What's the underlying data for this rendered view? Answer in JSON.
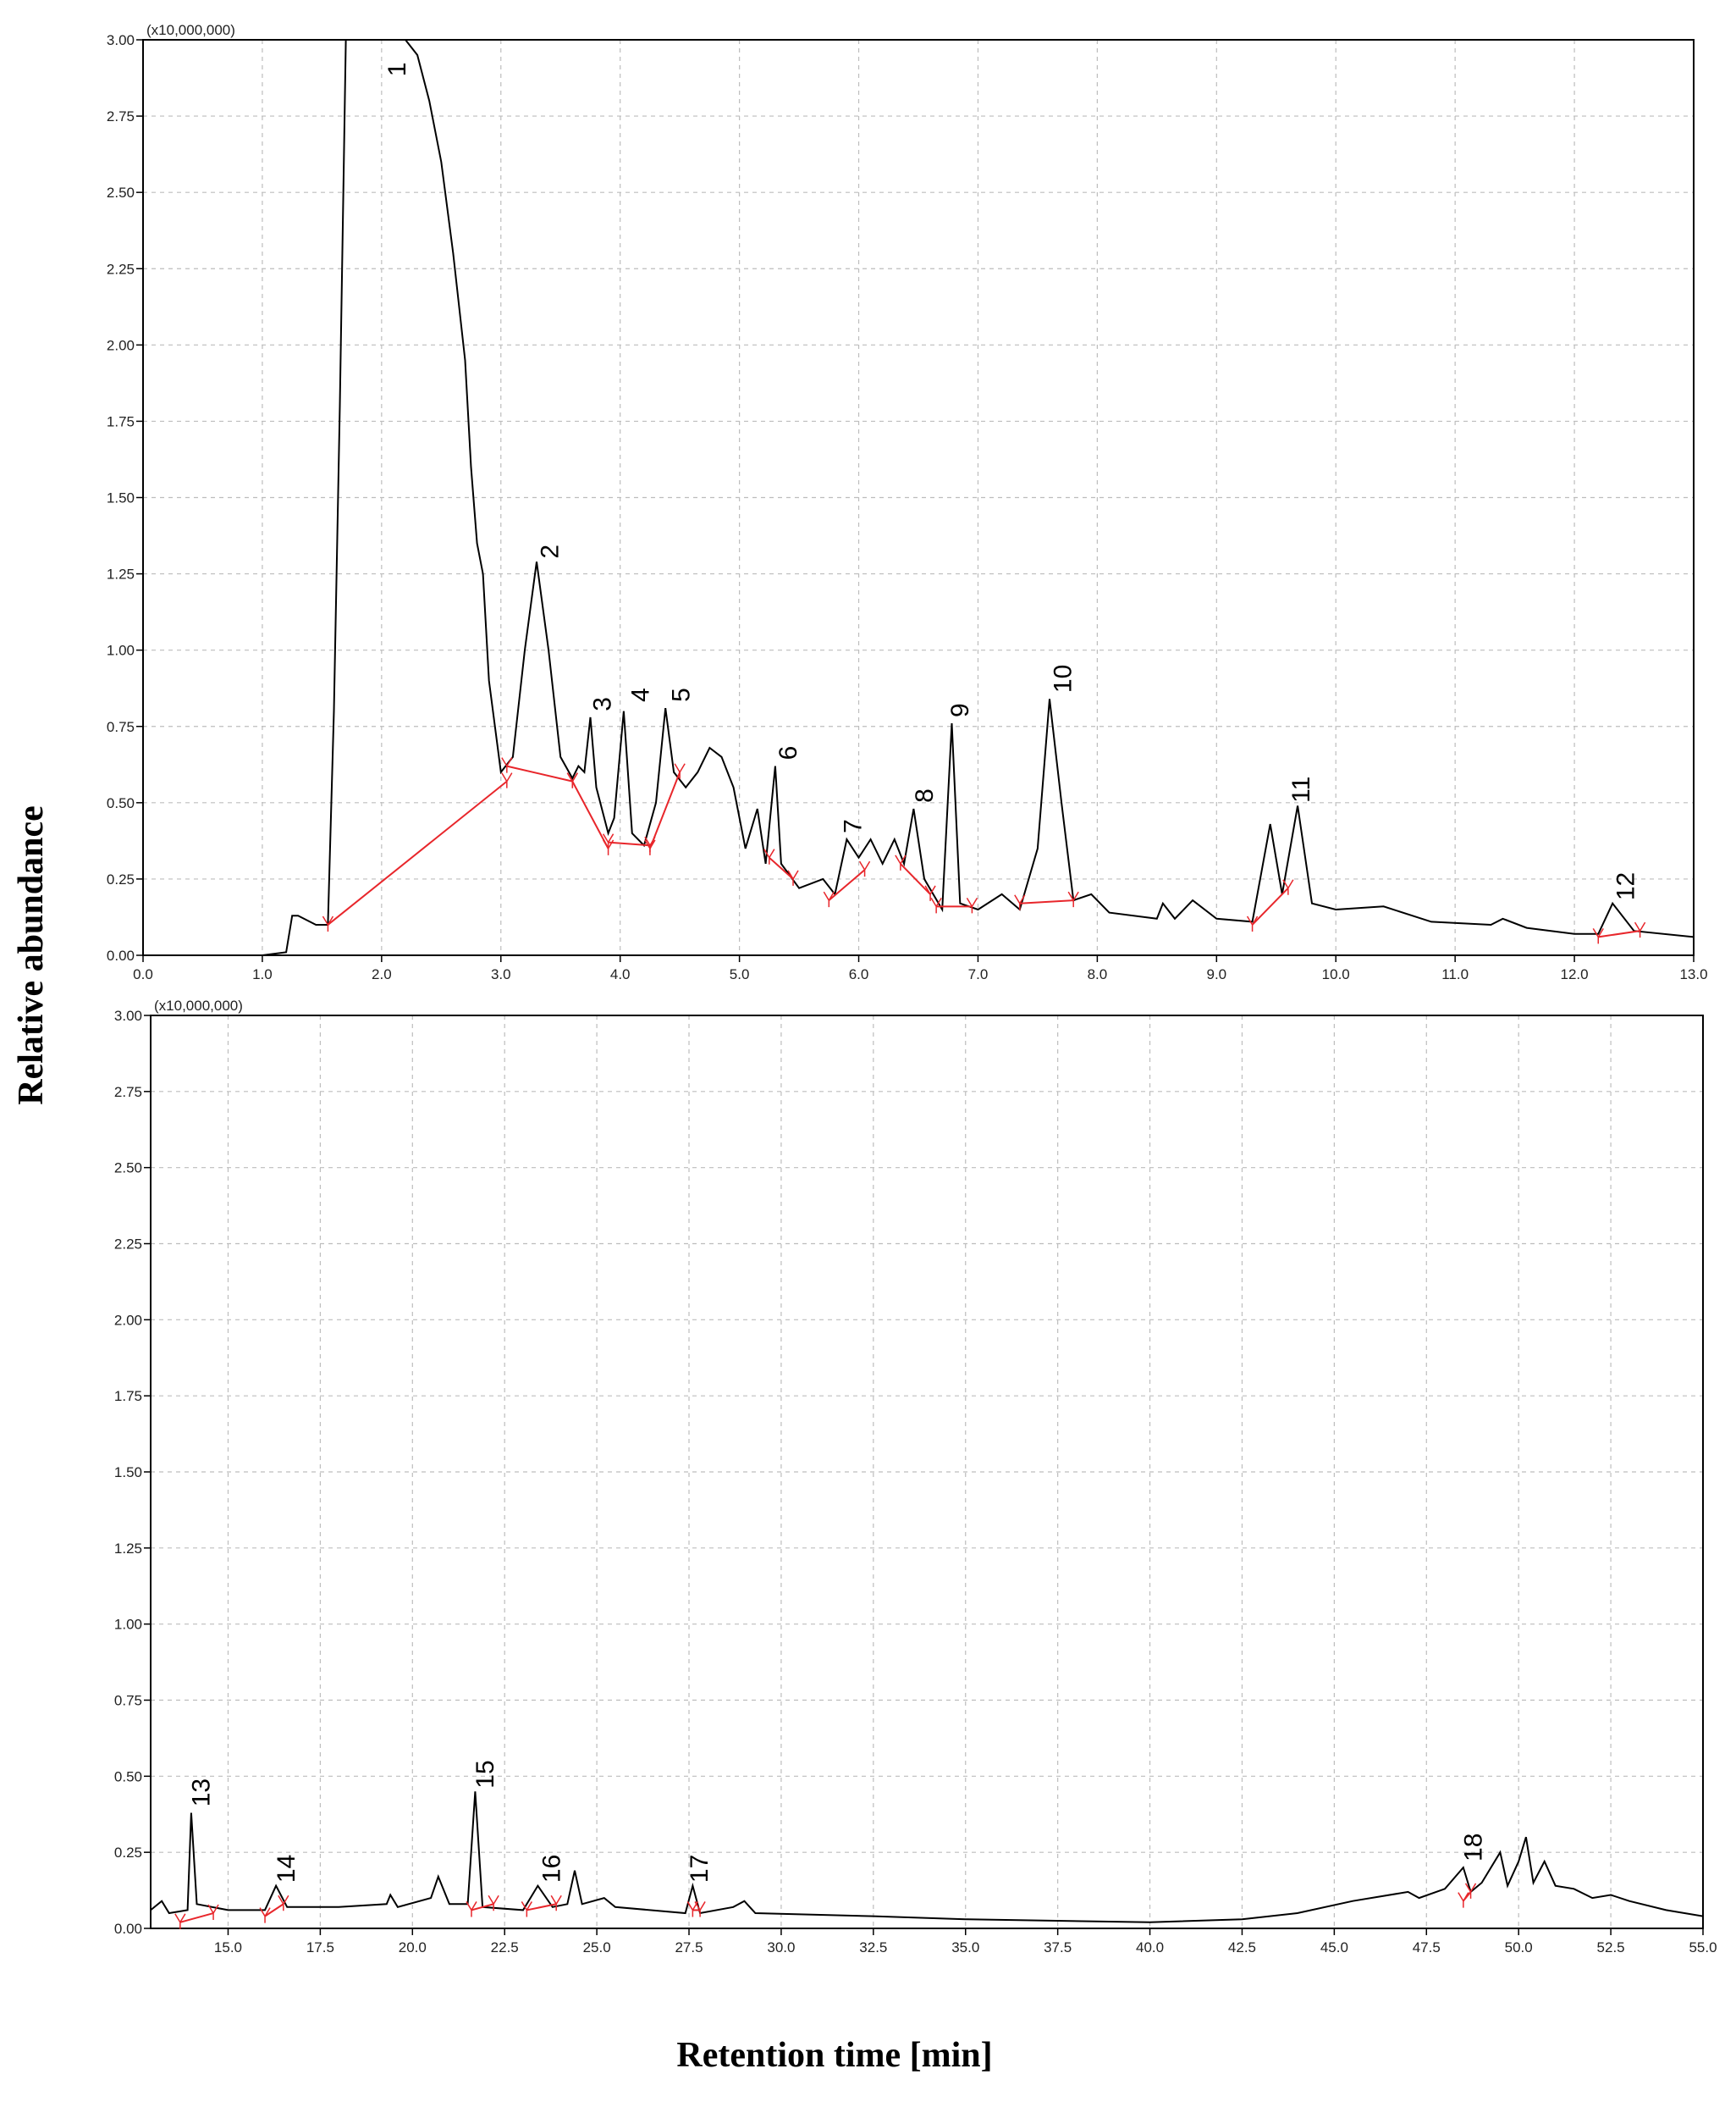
{
  "ylabel": "Relative abundance",
  "xlabel": "Retention time [min]",
  "chart_data": [
    {
      "type": "line",
      "multiplier": "(x10,000,000)",
      "color": "#000000",
      "baseline_color": "#e8262b",
      "grid": true,
      "xlim": [
        0,
        13
      ],
      "ylim": [
        0,
        3
      ],
      "xticks": [
        {
          "value": 0,
          "label": "0.0"
        },
        {
          "value": 1,
          "label": "1.0"
        },
        {
          "value": 2,
          "label": "2.0"
        },
        {
          "value": 3,
          "label": "3.0"
        },
        {
          "value": 4,
          "label": "4.0"
        },
        {
          "value": 5,
          "label": "5.0"
        },
        {
          "value": 6,
          "label": "6.0"
        },
        {
          "value": 7,
          "label": "7.0"
        },
        {
          "value": 8,
          "label": "8.0"
        },
        {
          "value": 9,
          "label": "9.0"
        },
        {
          "value": 10,
          "label": "10.0"
        },
        {
          "value": 11,
          "label": "11.0"
        },
        {
          "value": 12,
          "label": "12.0"
        },
        {
          "value": 13,
          "label": "13.0"
        }
      ],
      "yticks": [
        {
          "value": 0,
          "label": "0.00"
        },
        {
          "value": 0.25,
          "label": "0.25"
        },
        {
          "value": 0.5,
          "label": "0.50"
        },
        {
          "value": 0.75,
          "label": "0.75"
        },
        {
          "value": 1,
          "label": "1.00"
        },
        {
          "value": 1.25,
          "label": "1.25"
        },
        {
          "value": 1.5,
          "label": "1.50"
        },
        {
          "value": 1.75,
          "label": "1.75"
        },
        {
          "value": 2,
          "label": "2.00"
        },
        {
          "value": 2.25,
          "label": "2.25"
        },
        {
          "value": 2.5,
          "label": "2.50"
        },
        {
          "value": 2.75,
          "label": "2.75"
        },
        {
          "value": 3,
          "label": "3.00"
        }
      ],
      "x": [
        0,
        0.5,
        1.0,
        1.2,
        1.25,
        1.3,
        1.45,
        1.55,
        1.6,
        1.65,
        1.7,
        2.2,
        2.3,
        2.4,
        2.5,
        2.6,
        2.7,
        2.75,
        2.8,
        2.85,
        2.9,
        3.0,
        3.1,
        3.2,
        3.3,
        3.4,
        3.5,
        3.6,
        3.65,
        3.7,
        3.75,
        3.8,
        3.9,
        3.95,
        4.03,
        4.1,
        4.2,
        4.3,
        4.38,
        4.45,
        4.55,
        4.65,
        4.75,
        4.85,
        4.95,
        5.05,
        5.15,
        5.22,
        5.3,
        5.35,
        5.5,
        5.7,
        5.8,
        5.9,
        6.0,
        6.1,
        6.2,
        6.3,
        6.38,
        6.46,
        6.55,
        6.7,
        6.78,
        6.85,
        7.0,
        7.2,
        7.35,
        7.5,
        7.6,
        7.7,
        7.8,
        7.95,
        8.1,
        8.5,
        8.55,
        8.65,
        8.8,
        9.0,
        9.3,
        9.45,
        9.55,
        9.68,
        9.8,
        10.0,
        10.4,
        10.8,
        11.3,
        11.4,
        11.6,
        12.0,
        12.2,
        12.32,
        12.5,
        13.0
      ],
      "values": [
        0,
        0,
        0,
        0.01,
        0.13,
        0.13,
        0.1,
        0.1,
        0.8,
        1.8,
        3.0,
        3.0,
        2.95,
        2.8,
        2.6,
        2.3,
        1.95,
        1.6,
        1.35,
        1.25,
        0.9,
        0.6,
        0.65,
        1.0,
        1.29,
        1.0,
        0.65,
        0.58,
        0.62,
        0.6,
        0.78,
        0.55,
        0.4,
        0.45,
        0.8,
        0.4,
        0.36,
        0.5,
        0.81,
        0.6,
        0.55,
        0.6,
        0.68,
        0.65,
        0.55,
        0.35,
        0.48,
        0.3,
        0.62,
        0.3,
        0.22,
        0.25,
        0.2,
        0.38,
        0.32,
        0.38,
        0.3,
        0.38,
        0.3,
        0.48,
        0.25,
        0.15,
        0.76,
        0.17,
        0.15,
        0.2,
        0.15,
        0.35,
        0.84,
        0.5,
        0.18,
        0.2,
        0.14,
        0.12,
        0.17,
        0.12,
        0.18,
        0.12,
        0.11,
        0.43,
        0.2,
        0.49,
        0.17,
        0.15,
        0.16,
        0.11,
        0.1,
        0.12,
        0.09,
        0.07,
        0.07,
        0.17,
        0.08,
        0.06
      ],
      "baselines": [
        [
          1.55,
          0.1,
          3.05,
          0.57
        ],
        [
          3.05,
          0.62,
          3.6,
          0.57
        ],
        [
          3.6,
          0.57,
          3.9,
          0.35
        ],
        [
          3.9,
          0.37,
          4.25,
          0.36
        ],
        [
          4.25,
          0.35,
          4.5,
          0.6
        ],
        [
          5.25,
          0.32,
          5.45,
          0.25
        ],
        [
          5.75,
          0.18,
          6.05,
          0.28
        ],
        [
          6.35,
          0.3,
          6.6,
          0.2
        ],
        [
          6.65,
          0.16,
          6.95,
          0.16
        ],
        [
          7.35,
          0.17,
          7.8,
          0.18
        ],
        [
          9.3,
          0.1,
          9.6,
          0.22
        ],
        [
          12.2,
          0.06,
          12.55,
          0.08
        ]
      ],
      "annotations": [
        {
          "text": "1",
          "x": 2.2,
          "y": 2.88
        },
        {
          "text": "2",
          "x": 3.48,
          "y": 1.3
        },
        {
          "text": "3",
          "x": 3.92,
          "y": 0.8
        },
        {
          "text": "4",
          "x": 4.24,
          "y": 0.83
        },
        {
          "text": "5",
          "x": 4.58,
          "y": 0.83
        },
        {
          "text": "6",
          "x": 5.48,
          "y": 0.64
        },
        {
          "text": "7",
          "x": 6.02,
          "y": 0.4
        },
        {
          "text": "8",
          "x": 6.62,
          "y": 0.5
        },
        {
          "text": "9",
          "x": 6.92,
          "y": 0.78
        },
        {
          "text": "10",
          "x": 7.78,
          "y": 0.86
        },
        {
          "text": "11",
          "x": 9.78,
          "y": 0.5
        },
        {
          "text": "12",
          "x": 12.5,
          "y": 0.18
        }
      ]
    },
    {
      "type": "line",
      "multiplier": "(x10,000,000)",
      "color": "#000000",
      "baseline_color": "#e8262b",
      "grid": true,
      "xlim": [
        12.9,
        55
      ],
      "ylim": [
        0,
        3
      ],
      "xticks": [
        {
          "value": 15,
          "label": "15.0"
        },
        {
          "value": 17.5,
          "label": "17.5"
        },
        {
          "value": 20,
          "label": "20.0"
        },
        {
          "value": 22.5,
          "label": "22.5"
        },
        {
          "value": 25,
          "label": "25.0"
        },
        {
          "value": 27.5,
          "label": "27.5"
        },
        {
          "value": 30,
          "label": "30.0"
        },
        {
          "value": 32.5,
          "label": "32.5"
        },
        {
          "value": 35,
          "label": "35.0"
        },
        {
          "value": 37.5,
          "label": "37.5"
        },
        {
          "value": 40,
          "label": "40.0"
        },
        {
          "value": 42.5,
          "label": "42.5"
        },
        {
          "value": 45,
          "label": "45.0"
        },
        {
          "value": 47.5,
          "label": "47.5"
        },
        {
          "value": 50,
          "label": "50.0"
        },
        {
          "value": 52.5,
          "label": "52.5"
        },
        {
          "value": 55,
          "label": "55.0"
        }
      ],
      "yticks": [
        {
          "value": 0,
          "label": "0.00"
        },
        {
          "value": 0.25,
          "label": "0.25"
        },
        {
          "value": 0.5,
          "label": "0.50"
        },
        {
          "value": 0.75,
          "label": "0.75"
        },
        {
          "value": 1,
          "label": "1.00"
        },
        {
          "value": 1.25,
          "label": "1.25"
        },
        {
          "value": 1.5,
          "label": "1.50"
        },
        {
          "value": 1.75,
          "label": "1.75"
        },
        {
          "value": 2,
          "label": "2.00"
        },
        {
          "value": 2.25,
          "label": "2.25"
        },
        {
          "value": 2.5,
          "label": "2.50"
        },
        {
          "value": 2.75,
          "label": "2.75"
        },
        {
          "value": 3,
          "label": "3.00"
        }
      ],
      "x": [
        12.9,
        13.2,
        13.4,
        13.9,
        14.0,
        14.15,
        15.0,
        16.0,
        16.3,
        16.6,
        18.0,
        19.3,
        19.4,
        19.6,
        20.5,
        20.7,
        21.0,
        21.5,
        21.7,
        21.9,
        23.0,
        23.4,
        23.8,
        24.2,
        24.4,
        24.6,
        25.2,
        25.5,
        27.4,
        27.6,
        27.8,
        28.7,
        29.0,
        29.3,
        32.5,
        35.0,
        40.0,
        42.5,
        44.0,
        45.5,
        47.0,
        47.3,
        48.0,
        48.5,
        48.7,
        49.0,
        49.5,
        49.7,
        50.0,
        50.2,
        50.4,
        50.7,
        51.0,
        51.5,
        52.0,
        52.5,
        53.0,
        54.0,
        55.0
      ],
      "values": [
        0.06,
        0.09,
        0.05,
        0.06,
        0.38,
        0.08,
        0.06,
        0.06,
        0.14,
        0.07,
        0.07,
        0.08,
        0.11,
        0.07,
        0.1,
        0.17,
        0.08,
        0.08,
        0.45,
        0.07,
        0.06,
        0.14,
        0.07,
        0.08,
        0.19,
        0.08,
        0.1,
        0.07,
        0.05,
        0.14,
        0.05,
        0.07,
        0.09,
        0.05,
        0.04,
        0.03,
        0.02,
        0.03,
        0.05,
        0.09,
        0.12,
        0.1,
        0.13,
        0.2,
        0.12,
        0.15,
        0.25,
        0.14,
        0.22,
        0.3,
        0.15,
        0.22,
        0.14,
        0.13,
        0.1,
        0.11,
        0.09,
        0.06,
        0.04
      ],
      "baselines": [
        [
          13.7,
          0.02,
          14.6,
          0.05
        ],
        [
          16.0,
          0.04,
          16.5,
          0.08
        ],
        [
          21.6,
          0.06,
          22.2,
          0.08
        ],
        [
          23.1,
          0.06,
          23.9,
          0.08
        ],
        [
          27.6,
          0.06,
          27.8,
          0.06
        ],
        [
          48.5,
          0.09,
          48.7,
          0.12
        ]
      ],
      "annotations": [
        {
          "text": "13",
          "x": 14.5,
          "y": 0.4
        },
        {
          "text": "14",
          "x": 16.8,
          "y": 0.15
        },
        {
          "text": "15",
          "x": 22.2,
          "y": 0.46
        },
        {
          "text": "16",
          "x": 24.0,
          "y": 0.15
        },
        {
          "text": "17",
          "x": 28.0,
          "y": 0.15
        },
        {
          "text": "18",
          "x": 49.0,
          "y": 0.22
        }
      ]
    }
  ]
}
